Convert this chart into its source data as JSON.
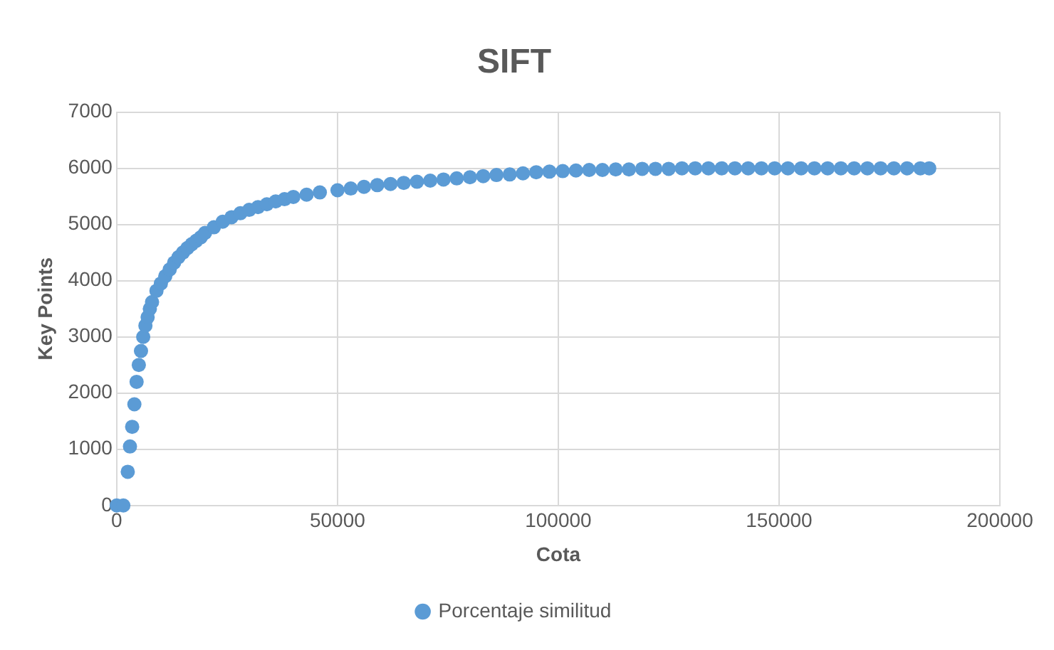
{
  "chart_data": {
    "type": "scatter",
    "title": "SIFT",
    "xlabel": "Cota",
    "ylabel": "Key Points",
    "xlim": [
      0,
      200000
    ],
    "xticks": [
      0,
      50000,
      100000,
      150000,
      200000
    ],
    "ylim": [
      0,
      7000
    ],
    "yticks": [
      0,
      1000,
      2000,
      3000,
      4000,
      5000,
      6000,
      7000
    ],
    "grid": true,
    "legend": "bottom",
    "marker": "circle",
    "series": [
      {
        "name": "Porcentaje similitud",
        "color": "#5b9bd5",
        "x": [
          0,
          1500,
          2500,
          3000,
          3500,
          4000,
          4500,
          5000,
          5500,
          6000,
          6500,
          7000,
          7500,
          8000,
          9000,
          10000,
          11000,
          12000,
          13000,
          14000,
          15000,
          16000,
          17000,
          18000,
          19000,
          20000,
          22000,
          24000,
          26000,
          28000,
          30000,
          32000,
          34000,
          36000,
          38000,
          40000,
          43000,
          46000,
          50000,
          53000,
          56000,
          59000,
          62000,
          65000,
          68000,
          71000,
          74000,
          77000,
          80000,
          83000,
          86000,
          89000,
          92000,
          95000,
          98000,
          101000,
          104000,
          107000,
          110000,
          113000,
          116000,
          119000,
          122000,
          125000,
          128000,
          131000,
          134000,
          137000,
          140000,
          143000,
          146000,
          149000,
          152000,
          155000,
          158000,
          161000,
          164000,
          167000,
          170000,
          173000,
          176000,
          179000,
          182000,
          184000
        ],
        "values": [
          0,
          0,
          600,
          1050,
          1400,
          1800,
          2200,
          2500,
          2750,
          3000,
          3200,
          3350,
          3500,
          3620,
          3820,
          3950,
          4080,
          4200,
          4320,
          4420,
          4500,
          4580,
          4650,
          4710,
          4770,
          4850,
          4950,
          5050,
          5130,
          5200,
          5260,
          5310,
          5360,
          5410,
          5450,
          5490,
          5530,
          5570,
          5610,
          5640,
          5670,
          5700,
          5720,
          5740,
          5760,
          5780,
          5800,
          5820,
          5840,
          5860,
          5880,
          5890,
          5910,
          5930,
          5940,
          5950,
          5960,
          5970,
          5970,
          5980,
          5980,
          5990,
          5990,
          5990,
          6000,
          6000,
          6000,
          6000,
          6000,
          6000,
          6000,
          6000,
          6000,
          6000,
          6000,
          6000,
          6000,
          6000,
          6000,
          6000,
          6000,
          6000,
          6000,
          6000
        ]
      }
    ]
  }
}
